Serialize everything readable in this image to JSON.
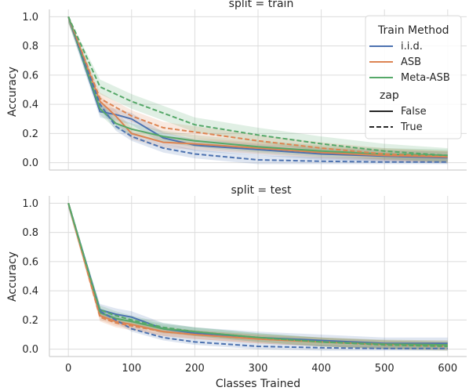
{
  "chart_data": {
    "type": "line",
    "xlabel": "Classes Trained",
    "ylabel": "Accuracy",
    "xlim": [
      -30,
      630
    ],
    "ylim": [
      -0.05,
      1.05
    ],
    "xticks": [
      0,
      100,
      200,
      300,
      400,
      500,
      600
    ],
    "yticks": [
      0.0,
      0.2,
      0.4,
      0.6,
      0.8,
      1.0
    ],
    "grid": true,
    "legend": {
      "placement": "top-right",
      "hue_title": "Train Method",
      "style_title": "zap",
      "hue_entries": [
        {
          "label": "i.i.d.",
          "color": "#4c72b0"
        },
        {
          "label": "ASB",
          "color": "#dd8452"
        },
        {
          "label": "Meta-ASB",
          "color": "#55a868"
        }
      ],
      "style_entries": [
        {
          "label": "False",
          "dash": "solid"
        },
        {
          "label": "True",
          "dash": "dashed"
        }
      ]
    },
    "panels": [
      {
        "title": "split = train",
        "x": [
          0,
          50,
          75,
          100,
          150,
          200,
          300,
          400,
          500,
          600
        ],
        "series": [
          {
            "method": "i.i.d.",
            "zap": "False",
            "color": "#4c72b0",
            "values": [
              1.0,
              0.35,
              0.33,
              0.3,
              0.17,
              0.12,
              0.09,
              0.06,
              0.045,
              0.035
            ],
            "band": 0.04
          },
          {
            "method": "ASB",
            "zap": "False",
            "color": "#dd8452",
            "values": [
              1.0,
              0.42,
              0.32,
              0.2,
              0.14,
              0.13,
              0.1,
              0.07,
              0.05,
              0.04
            ],
            "band": 0.04
          },
          {
            "method": "Meta-ASB",
            "zap": "False",
            "color": "#55a868",
            "values": [
              1.0,
              0.37,
              0.27,
              0.23,
              0.18,
              0.15,
              0.11,
              0.08,
              0.06,
              0.05
            ],
            "band": 0.04
          },
          {
            "method": "i.i.d.",
            "zap": "True",
            "color": "#4c72b0",
            "values": [
              1.0,
              0.4,
              0.25,
              0.18,
              0.1,
              0.06,
              0.02,
              0.01,
              0.005,
              0.005
            ],
            "band": 0.03
          },
          {
            "method": "ASB",
            "zap": "True",
            "color": "#dd8452",
            "values": [
              1.0,
              0.44,
              0.38,
              0.32,
              0.24,
              0.21,
              0.15,
              0.1,
              0.06,
              0.04
            ],
            "band": 0.04
          },
          {
            "method": "Meta-ASB",
            "zap": "True",
            "color": "#55a868",
            "values": [
              1.0,
              0.52,
              0.47,
              0.42,
              0.34,
              0.26,
              0.19,
              0.13,
              0.08,
              0.05
            ],
            "band": 0.05
          }
        ]
      },
      {
        "title": "split = test",
        "x": [
          0,
          50,
          75,
          100,
          150,
          200,
          300,
          400,
          500,
          600
        ],
        "series": [
          {
            "method": "i.i.d.",
            "zap": "False",
            "color": "#4c72b0",
            "values": [
              1.0,
              0.27,
              0.24,
              0.22,
              0.14,
              0.11,
              0.08,
              0.06,
              0.04,
              0.04
            ],
            "band": 0.04
          },
          {
            "method": "ASB",
            "zap": "False",
            "color": "#dd8452",
            "values": [
              1.0,
              0.23,
              0.19,
              0.17,
              0.12,
              0.1,
              0.07,
              0.05,
              0.035,
              0.03
            ],
            "band": 0.03
          },
          {
            "method": "Meta-ASB",
            "zap": "False",
            "color": "#55a868",
            "values": [
              1.0,
              0.25,
              0.21,
              0.19,
              0.14,
              0.12,
              0.08,
              0.05,
              0.035,
              0.03
            ],
            "band": 0.03
          },
          {
            "method": "i.i.d.",
            "zap": "True",
            "color": "#4c72b0",
            "values": [
              1.0,
              0.26,
              0.2,
              0.14,
              0.08,
              0.05,
              0.02,
              0.01,
              0.005,
              0.005
            ],
            "band": 0.02
          },
          {
            "method": "ASB",
            "zap": "True",
            "color": "#dd8452",
            "values": [
              1.0,
              0.22,
              0.18,
              0.16,
              0.12,
              0.1,
              0.07,
              0.05,
              0.03,
              0.02
            ],
            "band": 0.03
          },
          {
            "method": "Meta-ASB",
            "zap": "True",
            "color": "#55a868",
            "values": [
              1.0,
              0.27,
              0.23,
              0.2,
              0.15,
              0.12,
              0.08,
              0.05,
              0.03,
              0.02
            ],
            "band": 0.03
          }
        ]
      }
    ]
  }
}
